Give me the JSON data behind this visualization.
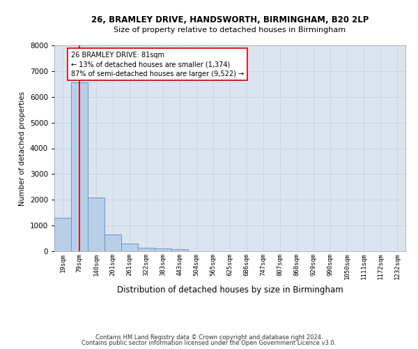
{
  "title1": "26, BRAMLEY DRIVE, HANDSWORTH, BIRMINGHAM, B20 2LP",
  "title2": "Size of property relative to detached houses in Birmingham",
  "xlabel": "Distribution of detached houses by size in Birmingham",
  "ylabel": "Number of detached properties",
  "categories": [
    "19sqm",
    "79sqm",
    "140sqm",
    "201sqm",
    "261sqm",
    "322sqm",
    "383sqm",
    "443sqm",
    "504sqm",
    "565sqm",
    "625sqm",
    "686sqm",
    "747sqm",
    "807sqm",
    "868sqm",
    "929sqm",
    "990sqm",
    "1050sqm",
    "1111sqm",
    "1172sqm",
    "1232sqm"
  ],
  "values": [
    1300,
    6550,
    2100,
    660,
    290,
    130,
    100,
    80,
    0,
    0,
    0,
    0,
    0,
    0,
    0,
    0,
    0,
    0,
    0,
    0,
    0
  ],
  "bar_color": "#b8cfe8",
  "bar_edge_color": "#6699cc",
  "property_line_x": 1.0,
  "property_line_color": "#cc0000",
  "annotation_text": "26 BRAMLEY DRIVE: 81sqm\n← 13% of detached houses are smaller (1,374)\n87% of semi-detached houses are larger (9,522) →",
  "annotation_box_color": "#ffffff",
  "annotation_box_edge": "#cc0000",
  "ylim": [
    0,
    8000
  ],
  "yticks": [
    0,
    1000,
    2000,
    3000,
    4000,
    5000,
    6000,
    7000,
    8000
  ],
  "grid_color": "#c8d4e8",
  "background_color": "#dce4f0",
  "footer1": "Contains HM Land Registry data © Crown copyright and database right 2024.",
  "footer2": "Contains public sector information licensed under the Open Government Licence v3.0."
}
